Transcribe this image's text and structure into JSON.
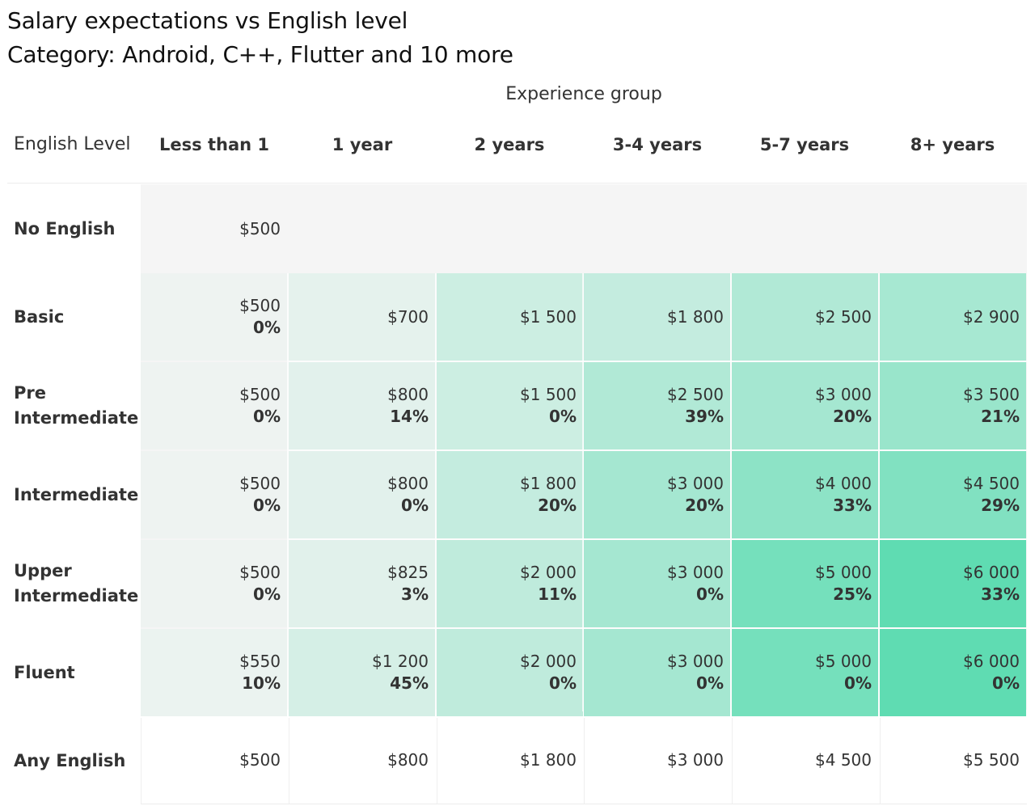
{
  "title_line1": "Salary expectations vs English level",
  "title_line2": "Category: Android, C++, Flutter and 10 more",
  "column_group_label": "Experience group",
  "row_header_label": "English Level",
  "columns": [
    "Less than 1",
    "1 year",
    "2 years",
    "3-4 years",
    "5-7 years",
    "8+ years"
  ],
  "colors": {
    "empty": "#f5f5f5",
    "scale_low": "#eef3f1",
    "scale_high": "#5fdcb2",
    "any_row_bg": "#ffffff",
    "text": "#333333"
  },
  "chart_data": {
    "type": "heatmap",
    "title": "Salary expectations vs English level",
    "subtitle": "Category: Android, C++, Flutter and 10 more",
    "x_group_label": "Experience group",
    "y_label": "English Level",
    "x": [
      "Less than 1",
      "1 year",
      "2 years",
      "3-4 years",
      "5-7 years",
      "8+ years"
    ],
    "rows": [
      {
        "label": "No English",
        "salary": [
          "$500",
          null,
          null,
          null,
          null,
          null
        ],
        "percent": [
          null,
          null,
          null,
          null,
          null,
          null
        ],
        "value": [
          500,
          null,
          null,
          null,
          null,
          null
        ]
      },
      {
        "label": "Basic",
        "salary": [
          "$500",
          "$700",
          "$1 500",
          "$1 800",
          "$2 500",
          "$2 900"
        ],
        "percent": [
          "0%",
          null,
          null,
          null,
          null,
          null
        ],
        "value": [
          500,
          700,
          1500,
          1800,
          2500,
          2900
        ]
      },
      {
        "label": "Pre Intermediate",
        "salary": [
          "$500",
          "$800",
          "$1 500",
          "$2 500",
          "$3 000",
          "$3 500"
        ],
        "percent": [
          "0%",
          "14%",
          "0%",
          "39%",
          "20%",
          "21%"
        ],
        "value": [
          500,
          800,
          1500,
          2500,
          3000,
          3500
        ]
      },
      {
        "label": "Intermediate",
        "salary": [
          "$500",
          "$800",
          "$1 800",
          "$3 000",
          "$4 000",
          "$4 500"
        ],
        "percent": [
          "0%",
          "0%",
          "20%",
          "20%",
          "33%",
          "29%"
        ],
        "value": [
          500,
          800,
          1800,
          3000,
          4000,
          4500
        ]
      },
      {
        "label": "Upper Intermediate",
        "salary": [
          "$500",
          "$825",
          "$2 000",
          "$3 000",
          "$5 000",
          "$6 000"
        ],
        "percent": [
          "0%",
          "3%",
          "11%",
          "0%",
          "25%",
          "33%"
        ],
        "value": [
          500,
          825,
          2000,
          3000,
          5000,
          6000
        ]
      },
      {
        "label": "Fluent",
        "salary": [
          "$550",
          "$1 200",
          "$2 000",
          "$3 000",
          "$5 000",
          "$6 000"
        ],
        "percent": [
          "10%",
          "45%",
          "0%",
          "0%",
          "0%",
          "0%"
        ],
        "value": [
          550,
          1200,
          2000,
          3000,
          5000,
          6000
        ]
      }
    ],
    "total_row": {
      "label": "Any English",
      "salary": [
        "$500",
        "$800",
        "$1 800",
        "$3 000",
        "$4 500",
        "$5 500"
      ]
    }
  }
}
